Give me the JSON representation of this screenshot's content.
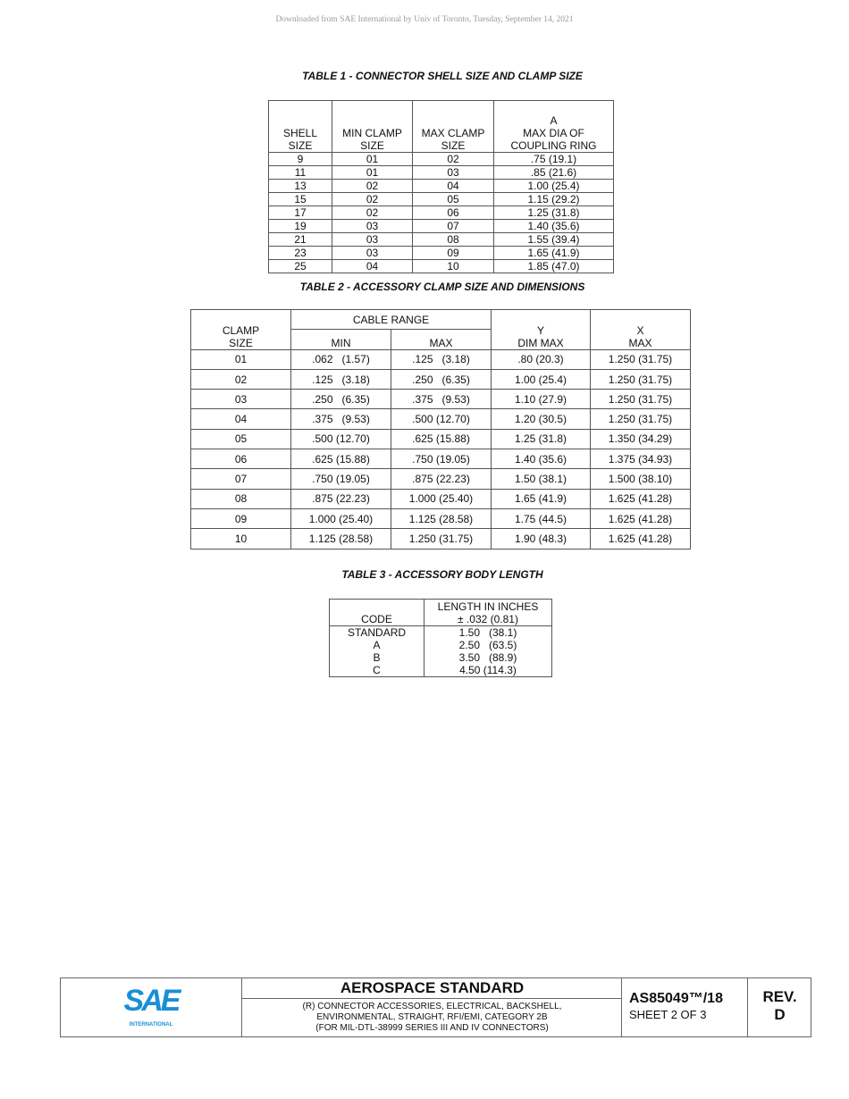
{
  "download_notice": "Downloaded from SAE International by Univ of Toronto, Tuesday, September 14, 2021",
  "table1": {
    "title": "TABLE 1 - CONNECTOR SHELL SIZE AND CLAMP SIZE",
    "headers": [
      "SHELL\nSIZE",
      "MIN CLAMP\nSIZE",
      "MAX CLAMP\nSIZE",
      "A\nMAX DIA OF\nCOUPLING RING"
    ],
    "rows": [
      [
        "9",
        "01",
        "02",
        ".75 (19.1)"
      ],
      [
        "11",
        "01",
        "03",
        ".85 (21.6)"
      ],
      [
        "13",
        "02",
        "04",
        "1.00 (25.4)"
      ],
      [
        "15",
        "02",
        "05",
        "1.15 (29.2)"
      ],
      [
        "17",
        "02",
        "06",
        "1.25 (31.8)"
      ],
      [
        "19",
        "03",
        "07",
        "1.40 (35.6)"
      ],
      [
        "21",
        "03",
        "08",
        "1.55 (39.4)"
      ],
      [
        "23",
        "03",
        "09",
        "1.65 (41.9)"
      ],
      [
        "25",
        "04",
        "10",
        "1.85 (47.0)"
      ]
    ]
  },
  "table2": {
    "title": "TABLE 2 - ACCESSORY CLAMP SIZE AND DIMENSIONS",
    "headers": {
      "clamp": "CLAMP\nSIZE",
      "cable_range": "CABLE RANGE",
      "min": "MIN",
      "max": "MAX",
      "y": "Y\nDIM MAX",
      "x": "X\nMAX"
    },
    "rows": [
      [
        "01",
        ".062   (1.57)",
        ".125   (3.18)",
        ".80 (20.3)",
        "1.250 (31.75)"
      ],
      [
        "02",
        ".125   (3.18)",
        ".250   (6.35)",
        "1.00 (25.4)",
        "1.250 (31.75)"
      ],
      [
        "03",
        ".250   (6.35)",
        ".375   (9.53)",
        "1.10 (27.9)",
        "1.250 (31.75)"
      ],
      [
        "04",
        ".375   (9.53)",
        ".500 (12.70)",
        "1.20 (30.5)",
        "1.250 (31.75)"
      ],
      [
        "05",
        ".500 (12.70)",
        ".625 (15.88)",
        "1.25 (31.8)",
        "1.350 (34.29)"
      ],
      [
        "06",
        ".625 (15.88)",
        ".750 (19.05)",
        "1.40 (35.6)",
        "1.375 (34.93)"
      ],
      [
        "07",
        ".750 (19.05)",
        ".875 (22.23)",
        "1.50 (38.1)",
        "1.500 (38.10)"
      ],
      [
        "08",
        ".875 (22.23)",
        "1.000 (25.40)",
        "1.65 (41.9)",
        "1.625 (41.28)"
      ],
      [
        "09",
        "1.000 (25.40)",
        "1.125 (28.58)",
        "1.75 (44.5)",
        "1.625 (41.28)"
      ],
      [
        "10",
        "1.125 (28.58)",
        "1.250 (31.75)",
        "1.90 (48.3)",
        "1.625 (41.28)"
      ]
    ]
  },
  "table3": {
    "title": "TABLE 3 - ACCESSORY BODY LENGTH",
    "headers": [
      "CODE",
      "LENGTH IN INCHES\n± .032 (0.81)"
    ],
    "rows": [
      [
        "STANDARD",
        "1.50   (38.1)"
      ],
      [
        "A",
        "2.50   (63.5)"
      ],
      [
        "B",
        "3.50   (88.9)"
      ],
      [
        "C",
        "4.50 (114.3)"
      ]
    ]
  },
  "footer": {
    "logo_text": "SAE",
    "logo_sub": "INTERNATIONAL",
    "title": "AEROSPACE STANDARD",
    "description": "(R) CONNECTOR ACCESSORIES, ELECTRICAL, BACKSHELL,\nENVIRONMENTAL, STRAIGHT, RFI/EMI, CATEGORY 2B\n(FOR MIL-DTL-38999 SERIES III AND IV CONNECTORS)",
    "doc_number": "AS85049™/18",
    "sheet": "SHEET 2 OF 3",
    "rev_label": "REV.",
    "rev": "D",
    "brand_color": "#1a8fd6"
  }
}
